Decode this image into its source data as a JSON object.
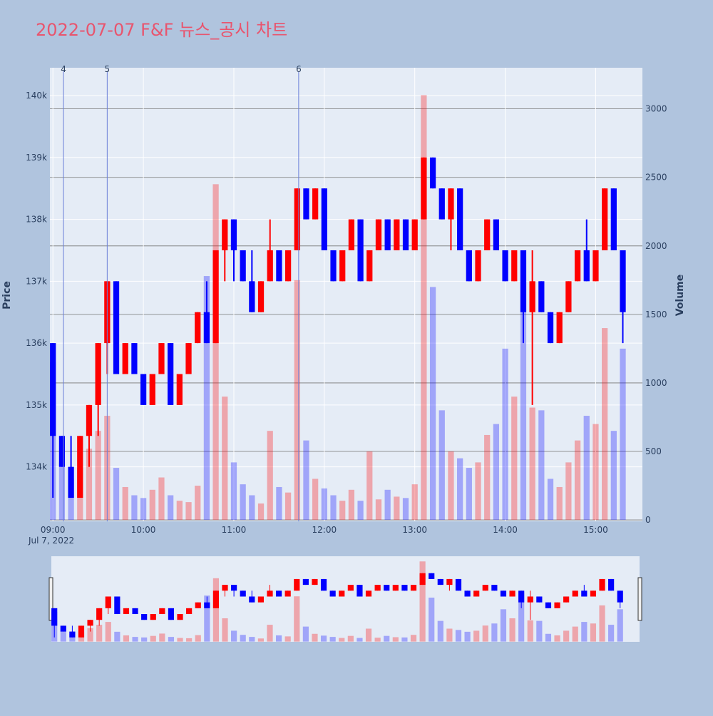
{
  "chart_data": {
    "type": "candlestick",
    "title": "2022-07-07 F&F 뉴스_공시 차트",
    "y_label": "Price",
    "y2_label": "Volume",
    "x_date_label": "Jul 7, 2022",
    "increasing_color": "#ff0000",
    "decreasing_color": "#0000ff",
    "xlim": [
      "08:58",
      "15:31"
    ],
    "xticks": [
      "09:00",
      "10:00",
      "11:00",
      "12:00",
      "13:00",
      "14:00",
      "15:00"
    ],
    "ylim": [
      133120,
      140450
    ],
    "yticks": [
      {
        "value": 134000,
        "label": "134k"
      },
      {
        "value": 135000,
        "label": "135k"
      },
      {
        "value": 136000,
        "label": "136k"
      },
      {
        "value": 137000,
        "label": "137k"
      },
      {
        "value": 138000,
        "label": "138k"
      },
      {
        "value": 139000,
        "label": "139k"
      },
      {
        "value": 140000,
        "label": "140k"
      }
    ],
    "y2lim": [
      -10,
      3300
    ],
    "y2ticks": [
      0,
      500,
      1000,
      1500,
      2000,
      2500,
      3000
    ],
    "annotations": [
      {
        "x": "09:07",
        "text": "4"
      },
      {
        "x": "09:36",
        "text": "5"
      },
      {
        "x": "11:43",
        "text": "6"
      }
    ],
    "x": [
      "09:00",
      "09:06",
      "09:12",
      "09:18",
      "09:24",
      "09:30",
      "09:36",
      "09:42",
      "09:48",
      "09:54",
      "10:00",
      "10:06",
      "10:12",
      "10:18",
      "10:24",
      "10:30",
      "10:36",
      "10:42",
      "10:48",
      "10:54",
      "11:00",
      "11:06",
      "11:12",
      "11:18",
      "11:24",
      "11:30",
      "11:36",
      "11:42",
      "11:48",
      "11:54",
      "12:00",
      "12:06",
      "12:12",
      "12:18",
      "12:24",
      "12:30",
      "12:36",
      "12:42",
      "12:48",
      "12:54",
      "13:00",
      "13:06",
      "13:12",
      "13:18",
      "13:24",
      "13:30",
      "13:36",
      "13:42",
      "13:48",
      "13:54",
      "14:00",
      "14:06",
      "14:12",
      "14:18",
      "14:24",
      "14:30",
      "14:36",
      "14:42",
      "14:48",
      "14:54",
      "15:00",
      "15:06",
      "15:12",
      "15:18"
    ],
    "open": [
      136000,
      134500,
      134000,
      133500,
      134500,
      135000,
      136000,
      137000,
      135500,
      136000,
      135500,
      135000,
      135500,
      136000,
      135000,
      135500,
      136000,
      136500,
      136000,
      137500,
      138000,
      137500,
      137000,
      136500,
      137000,
      137500,
      137000,
      137500,
      138500,
      138000,
      138500,
      137500,
      137000,
      137500,
      138000,
      137000,
      137500,
      138000,
      137500,
      138000,
      137500,
      138000,
      139000,
      138500,
      138000,
      138500,
      137500,
      137000,
      137500,
      138000,
      137500,
      137000,
      137500,
      136500,
      137000,
      136500,
      136000,
      136500,
      137000,
      137500,
      137000,
      137500,
      138500,
      137500
    ],
    "high": [
      136000,
      134500,
      134500,
      134500,
      135000,
      136000,
      137000,
      137000,
      136000,
      136000,
      135500,
      135500,
      136000,
      136000,
      135500,
      136000,
      136500,
      137000,
      137500,
      138000,
      138000,
      137500,
      137500,
      137000,
      138000,
      137500,
      137500,
      138500,
      138500,
      138500,
      138500,
      137500,
      137500,
      138000,
      138000,
      137500,
      138000,
      138000,
      138000,
      138000,
      138000,
      139000,
      139000,
      138500,
      138500,
      138500,
      137500,
      137500,
      138000,
      138000,
      137500,
      137500,
      137500,
      137500,
      137000,
      136500,
      136500,
      137000,
      137500,
      138000,
      137500,
      138500,
      138500,
      137500
    ],
    "low": [
      133500,
      134000,
      133500,
      133500,
      134000,
      134500,
      135500,
      135500,
      135500,
      135500,
      135000,
      135000,
      135500,
      135000,
      135000,
      135500,
      136000,
      136000,
      136000,
      137000,
      137000,
      137000,
      136500,
      136500,
      137000,
      137000,
      137000,
      137500,
      138000,
      138000,
      137500,
      137000,
      137000,
      137500,
      137000,
      137000,
      137500,
      137500,
      137500,
      137500,
      137500,
      138000,
      138500,
      138000,
      137500,
      137500,
      137000,
      137000,
      137500,
      137500,
      137000,
      137000,
      136000,
      135000,
      136500,
      136000,
      136000,
      136500,
      137000,
      137000,
      137000,
      137500,
      137500,
      136000
    ],
    "close": [
      134500,
      134000,
      133500,
      134500,
      135000,
      136000,
      137000,
      135500,
      136000,
      135500,
      135000,
      135500,
      136000,
      135000,
      135500,
      136000,
      136500,
      136000,
      137500,
      138000,
      137500,
      137000,
      136500,
      137000,
      137500,
      137000,
      137500,
      138500,
      138000,
      138500,
      137500,
      137000,
      137500,
      138000,
      137000,
      137500,
      138000,
      137500,
      138000,
      137500,
      138000,
      139000,
      138500,
      138000,
      138500,
      137500,
      137000,
      137500,
      138000,
      137500,
      137000,
      137500,
      136500,
      137000,
      136500,
      136000,
      136500,
      137000,
      137500,
      137000,
      137500,
      138500,
      137500,
      136500
    ],
    "volume": [
      1150,
      420,
      300,
      380,
      520,
      650,
      760,
      380,
      240,
      180,
      160,
      220,
      310,
      180,
      140,
      130,
      250,
      1780,
      2450,
      900,
      420,
      260,
      180,
      120,
      650,
      240,
      200,
      1750,
      580,
      300,
      230,
      180,
      140,
      220,
      140,
      500,
      150,
      220,
      170,
      160,
      260,
      3100,
      1700,
      800,
      500,
      450,
      380,
      420,
      620,
      700,
      1250,
      900,
      1900,
      820,
      800,
      300,
      240,
      420,
      580,
      760,
      700,
      1400,
      650,
      1250
    ]
  }
}
